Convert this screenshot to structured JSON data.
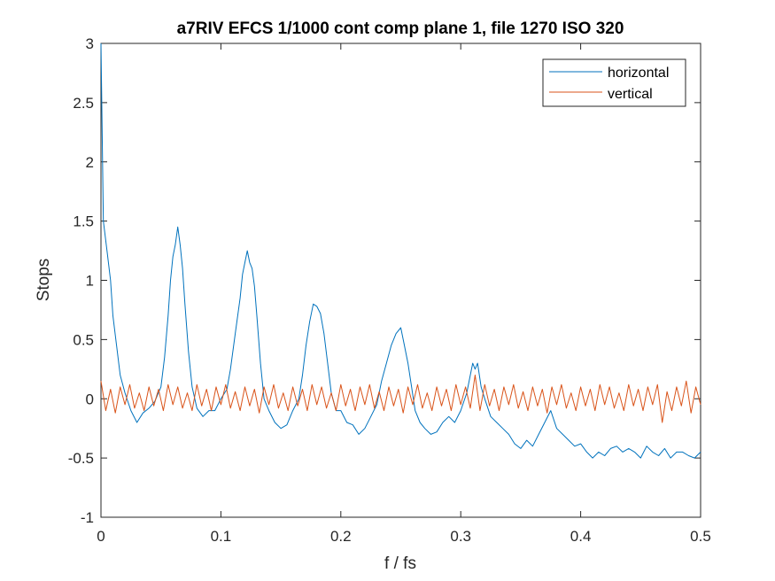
{
  "chart_data": {
    "type": "line",
    "title": "a7RIV EFCS 1/1000 cont comp plane 1, file 1270 ISO 320",
    "xlabel": "f / fs",
    "ylabel": "Stops",
    "xlim": [
      0,
      0.5
    ],
    "ylim": [
      -1,
      3
    ],
    "xticks": [
      0,
      0.1,
      0.2,
      0.3,
      0.4,
      0.5
    ],
    "xtick_labels": [
      "0",
      "0.1",
      "0.2",
      "0.3",
      "0.4",
      "0.5"
    ],
    "yticks": [
      -1,
      -0.5,
      0,
      0.5,
      1,
      1.5,
      2,
      2.5,
      3
    ],
    "ytick_labels": [
      "-1",
      "-0.5",
      "0",
      "0.5",
      "1",
      "1.5",
      "2",
      "2.5",
      "3"
    ],
    "grid": false,
    "legend_position": "top-right",
    "series": [
      {
        "name": "horizontal",
        "color": "#0072BD",
        "x": [
          0,
          0.002,
          0.005,
          0.008,
          0.01,
          0.013,
          0.016,
          0.02,
          0.025,
          0.03,
          0.035,
          0.04,
          0.045,
          0.05,
          0.053,
          0.056,
          0.058,
          0.06,
          0.062,
          0.064,
          0.066,
          0.068,
          0.07,
          0.073,
          0.076,
          0.08,
          0.085,
          0.09,
          0.095,
          0.1,
          0.105,
          0.108,
          0.112,
          0.116,
          0.118,
          0.12,
          0.122,
          0.124,
          0.126,
          0.128,
          0.13,
          0.133,
          0.136,
          0.14,
          0.145,
          0.15,
          0.155,
          0.16,
          0.165,
          0.168,
          0.171,
          0.174,
          0.177,
          0.18,
          0.183,
          0.186,
          0.189,
          0.192,
          0.196,
          0.2,
          0.205,
          0.21,
          0.215,
          0.22,
          0.225,
          0.23,
          0.234,
          0.238,
          0.242,
          0.246,
          0.25,
          0.253,
          0.256,
          0.259,
          0.262,
          0.266,
          0.27,
          0.275,
          0.28,
          0.285,
          0.29,
          0.295,
          0.3,
          0.305,
          0.308,
          0.31,
          0.312,
          0.314,
          0.317,
          0.32,
          0.325,
          0.33,
          0.335,
          0.34,
          0.345,
          0.35,
          0.355,
          0.36,
          0.365,
          0.37,
          0.375,
          0.38,
          0.385,
          0.39,
          0.395,
          0.4,
          0.405,
          0.41,
          0.415,
          0.42,
          0.425,
          0.43,
          0.435,
          0.44,
          0.445,
          0.45,
          0.455,
          0.46,
          0.465,
          0.47,
          0.475,
          0.48,
          0.485,
          0.49,
          0.495,
          0.5
        ],
        "y": [
          3.0,
          1.5,
          1.25,
          1.0,
          0.7,
          0.45,
          0.2,
          0.05,
          -0.1,
          -0.2,
          -0.12,
          -0.08,
          -0.02,
          0.1,
          0.35,
          0.7,
          1.0,
          1.2,
          1.3,
          1.45,
          1.3,
          1.1,
          0.8,
          0.4,
          0.1,
          -0.08,
          -0.15,
          -0.1,
          -0.1,
          0.0,
          0.08,
          0.25,
          0.55,
          0.85,
          1.05,
          1.15,
          1.25,
          1.15,
          1.1,
          0.95,
          0.7,
          0.3,
          0.0,
          -0.1,
          -0.2,
          -0.25,
          -0.22,
          -0.1,
          0.0,
          0.2,
          0.45,
          0.65,
          0.8,
          0.78,
          0.72,
          0.55,
          0.3,
          0.05,
          -0.1,
          -0.1,
          -0.2,
          -0.22,
          -0.3,
          -0.25,
          -0.15,
          -0.05,
          0.15,
          0.3,
          0.45,
          0.55,
          0.6,
          0.45,
          0.3,
          0.1,
          -0.1,
          -0.2,
          -0.25,
          -0.3,
          -0.28,
          -0.2,
          -0.15,
          -0.2,
          -0.1,
          0.05,
          0.2,
          0.3,
          0.25,
          0.3,
          0.1,
          0.0,
          -0.15,
          -0.2,
          -0.25,
          -0.3,
          -0.38,
          -0.42,
          -0.35,
          -0.4,
          -0.3,
          -0.2,
          -0.1,
          -0.25,
          -0.3,
          -0.35,
          -0.4,
          -0.38,
          -0.45,
          -0.5,
          -0.45,
          -0.48,
          -0.42,
          -0.4,
          -0.45,
          -0.42,
          -0.45,
          -0.5,
          -0.4,
          -0.45,
          -0.48,
          -0.42,
          -0.5,
          -0.45,
          -0.45,
          -0.48,
          -0.5,
          -0.45
        ]
      },
      {
        "name": "vertical",
        "color": "#D95319",
        "x": [
          0,
          0.004,
          0.008,
          0.012,
          0.016,
          0.02,
          0.024,
          0.028,
          0.032,
          0.036,
          0.04,
          0.044,
          0.048,
          0.052,
          0.056,
          0.06,
          0.064,
          0.068,
          0.072,
          0.076,
          0.08,
          0.084,
          0.088,
          0.092,
          0.096,
          0.1,
          0.104,
          0.108,
          0.112,
          0.116,
          0.12,
          0.124,
          0.128,
          0.132,
          0.136,
          0.14,
          0.144,
          0.148,
          0.152,
          0.156,
          0.16,
          0.164,
          0.168,
          0.172,
          0.176,
          0.18,
          0.184,
          0.188,
          0.192,
          0.196,
          0.2,
          0.204,
          0.208,
          0.212,
          0.216,
          0.22,
          0.224,
          0.228,
          0.232,
          0.236,
          0.24,
          0.244,
          0.248,
          0.252,
          0.256,
          0.26,
          0.264,
          0.268,
          0.272,
          0.276,
          0.28,
          0.284,
          0.288,
          0.292,
          0.296,
          0.3,
          0.304,
          0.308,
          0.312,
          0.316,
          0.32,
          0.324,
          0.328,
          0.332,
          0.336,
          0.34,
          0.344,
          0.348,
          0.352,
          0.356,
          0.36,
          0.364,
          0.368,
          0.372,
          0.376,
          0.38,
          0.384,
          0.388,
          0.392,
          0.396,
          0.4,
          0.404,
          0.408,
          0.412,
          0.416,
          0.42,
          0.424,
          0.428,
          0.432,
          0.436,
          0.44,
          0.444,
          0.448,
          0.452,
          0.456,
          0.46,
          0.464,
          0.468,
          0.472,
          0.476,
          0.48,
          0.484,
          0.488,
          0.492,
          0.496,
          0.5
        ],
        "y": [
          0.15,
          -0.1,
          0.08,
          -0.12,
          0.1,
          -0.05,
          0.12,
          -0.08,
          0.05,
          -0.1,
          0.1,
          -0.06,
          0.08,
          -0.1,
          0.12,
          -0.05,
          0.1,
          -0.08,
          0.05,
          -0.1,
          0.12,
          -0.06,
          0.08,
          -0.1,
          0.1,
          -0.05,
          0.12,
          -0.08,
          0.06,
          -0.1,
          0.1,
          -0.06,
          0.08,
          -0.12,
          0.1,
          -0.05,
          0.12,
          -0.08,
          0.05,
          -0.1,
          0.1,
          -0.06,
          0.08,
          -0.1,
          0.12,
          -0.05,
          0.1,
          -0.08,
          0.05,
          -0.1,
          0.12,
          -0.06,
          0.08,
          -0.1,
          0.1,
          -0.05,
          0.12,
          -0.08,
          0.06,
          -0.1,
          0.1,
          -0.06,
          0.08,
          -0.12,
          0.1,
          -0.05,
          0.12,
          -0.08,
          0.05,
          -0.1,
          0.1,
          -0.06,
          0.08,
          -0.1,
          0.12,
          -0.05,
          0.1,
          -0.08,
          0.2,
          -0.1,
          0.12,
          -0.06,
          0.08,
          -0.1,
          0.1,
          -0.05,
          0.12,
          -0.08,
          0.06,
          -0.1,
          0.1,
          -0.06,
          0.08,
          -0.12,
          0.1,
          -0.05,
          0.12,
          -0.08,
          0.05,
          -0.1,
          0.1,
          -0.06,
          0.08,
          -0.1,
          0.12,
          -0.05,
          0.1,
          -0.08,
          0.05,
          -0.1,
          0.12,
          -0.06,
          0.08,
          -0.1,
          0.1,
          -0.05,
          0.12,
          -0.2,
          0.06,
          -0.1,
          0.1,
          -0.06,
          0.15,
          -0.12,
          0.1,
          -0.05
        ]
      }
    ]
  }
}
